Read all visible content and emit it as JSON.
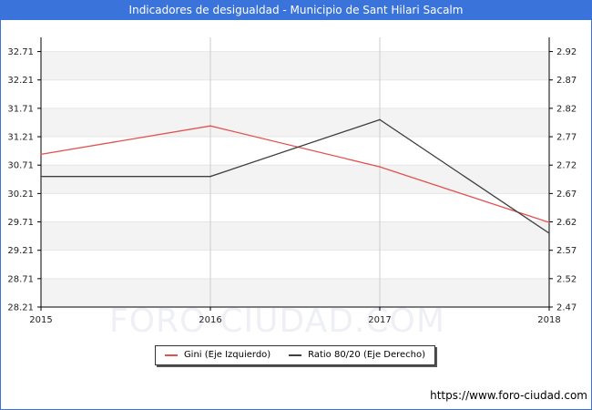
{
  "title": "Indicadores de desigualdad - Municipio de Sant Hilari Sacalm",
  "watermark": "FORO-CIUDAD.COM",
  "source_url": "https://www.foro-ciudad.com",
  "colors": {
    "header": "#3a73d9",
    "gini": "#e35050",
    "ratio": "#404040"
  },
  "chart_data": {
    "type": "line",
    "x": [
      "2015",
      "2016",
      "2017",
      "2018"
    ],
    "left_axis": {
      "ticks": [
        "32.71",
        "32.21",
        "31.71",
        "31.21",
        "30.71",
        "30.21",
        "29.71",
        "29.21",
        "28.71",
        "28.21"
      ],
      "range": [
        28.21,
        32.96
      ]
    },
    "right_axis": {
      "ticks": [
        "2.92",
        "2.87",
        "2.82",
        "2.77",
        "2.72",
        "2.67",
        "2.62",
        "2.57",
        "2.52",
        "2.47"
      ],
      "range": [
        2.47,
        2.945
      ]
    },
    "series": [
      {
        "name": "Gini (Eje Izquierdo)",
        "axis": "left",
        "color": "#e35050",
        "values": [
          30.9,
          31.4,
          30.68,
          29.7
        ]
      },
      {
        "name": "Ratio 80/20 (Eje Derecho)",
        "axis": "right",
        "color": "#404040",
        "values": [
          2.7,
          2.7,
          2.8,
          2.6
        ]
      }
    ],
    "grid": true,
    "legend_position": "bottom"
  }
}
